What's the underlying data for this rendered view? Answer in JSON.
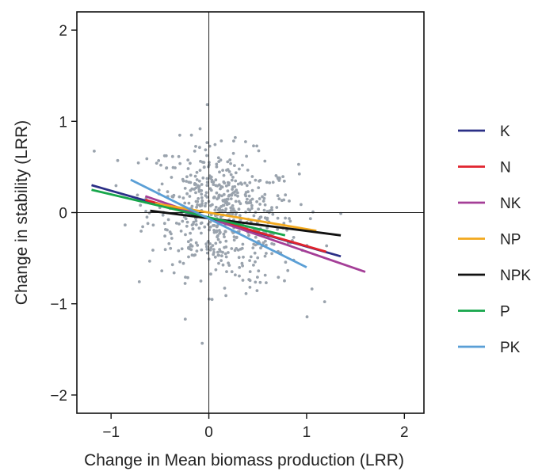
{
  "chart_data": {
    "type": "scatter",
    "xlabel": "Change in Mean biomass production (LRR)",
    "ylabel": "Change in stability (LRR)",
    "xlim": [
      -1.35,
      2.2
    ],
    "ylim": [
      -2.2,
      2.2
    ],
    "xticks": [
      -1,
      0,
      1,
      2
    ],
    "xtick_labels": [
      "−1",
      "0",
      "1",
      "2"
    ],
    "yticks": [
      -2,
      -1,
      0,
      1,
      2
    ],
    "ytick_labels": [
      "−2",
      "−1",
      "0",
      "1",
      "2"
    ],
    "grid": false,
    "reference_lines": {
      "x": 0,
      "y": 0
    },
    "legend_position": "right",
    "point_color": "#9aa3ad",
    "series": [
      {
        "name": "K",
        "color": "#2b2f86",
        "x": [
          -1.2,
          1.35
        ],
        "y": [
          0.3,
          -0.48
        ]
      },
      {
        "name": "N",
        "color": "#e0232d",
        "x": [
          -0.65,
          1.2
        ],
        "y": [
          0.14,
          -0.43
        ]
      },
      {
        "name": "NK",
        "color": "#a43e97",
        "x": [
          -0.65,
          1.6
        ],
        "y": [
          0.18,
          -0.65
        ]
      },
      {
        "name": "NP",
        "color": "#f2a81d",
        "x": [
          -0.55,
          1.1
        ],
        "y": [
          0.1,
          -0.2
        ]
      },
      {
        "name": "NPK",
        "color": "#111111",
        "x": [
          -0.6,
          1.35
        ],
        "y": [
          0.02,
          -0.25
        ]
      },
      {
        "name": "P",
        "color": "#17a64b",
        "x": [
          -1.2,
          0.78
        ],
        "y": [
          0.25,
          -0.25
        ]
      },
      {
        "name": "PK",
        "color": "#5a9fd6",
        "x": [
          -0.8,
          1.0
        ],
        "y": [
          0.36,
          -0.6
        ]
      }
    ]
  }
}
